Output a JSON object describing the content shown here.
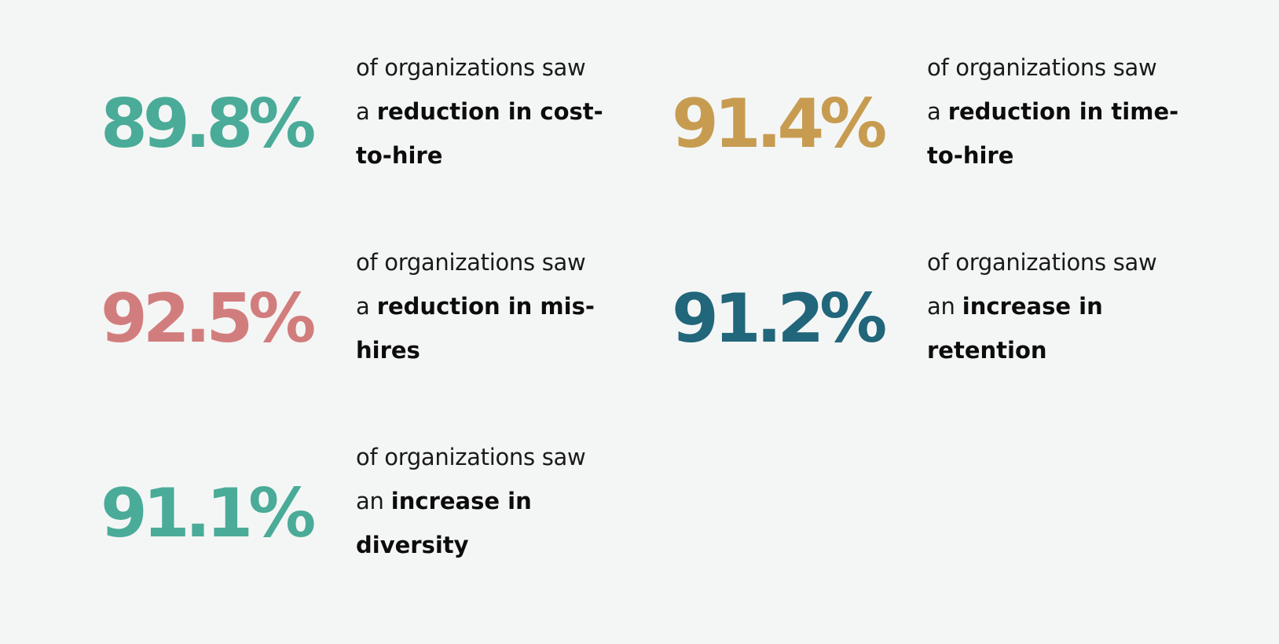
{
  "stats": [
    {
      "value": "89.8%",
      "color": "#4aab98",
      "intro": "of organizations saw",
      "article": "a",
      "emphasis": "reduction in cost-to-hire"
    },
    {
      "value": "91.4%",
      "color": "#c79c51",
      "intro": "of organizations saw",
      "article": "a",
      "emphasis": "reduction in time-to-hire"
    },
    {
      "value": "92.5%",
      "color": "#d27d7d",
      "intro": "of organizations saw",
      "article": "a",
      "emphasis": "reduction in mis-hires"
    },
    {
      "value": "91.2%",
      "color": "#21667b",
      "intro": "of organizations saw",
      "article": "an",
      "emphasis": "increase in retention"
    },
    {
      "value": "91.1%",
      "color": "#4aab98",
      "intro": "of organizations saw",
      "article": "an",
      "emphasis": "increase in diversity"
    }
  ]
}
